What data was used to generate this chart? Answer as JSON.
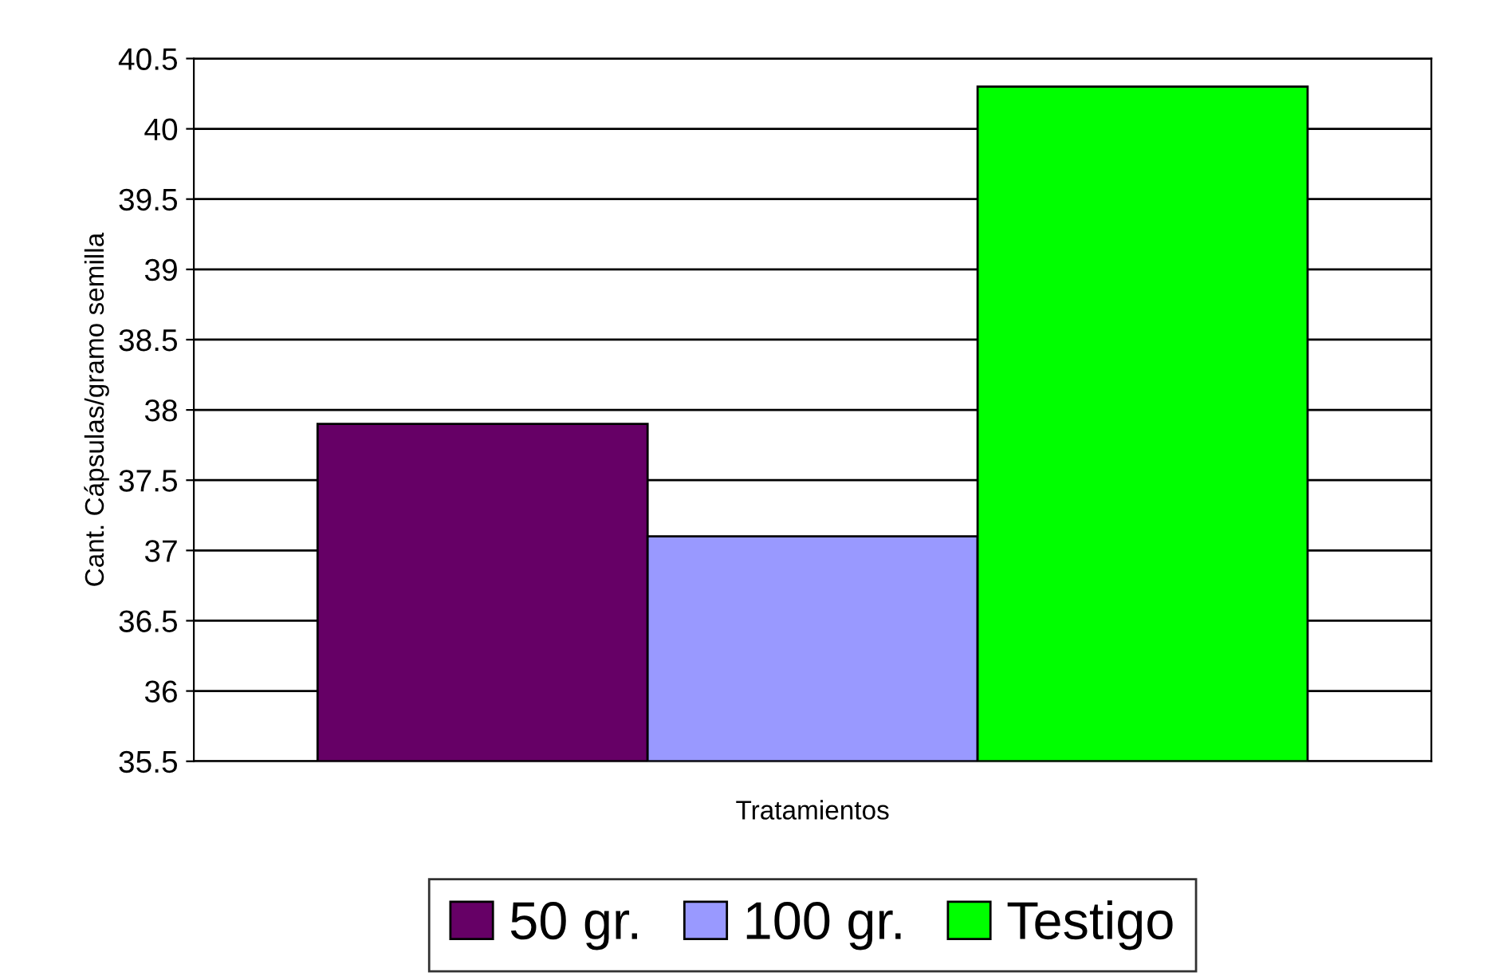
{
  "chart_data": {
    "type": "bar",
    "xlabel": "Tratamientos",
    "ylabel": "Cant. Cápsulas/gramo semilla",
    "categories": [
      null
    ],
    "series": [
      {
        "name": "50 gr.",
        "color": "#660066",
        "values": [
          37.9
        ]
      },
      {
        "name": "100 gr.",
        "color": "#9999ff",
        "values": [
          37.1
        ]
      },
      {
        "name": "Testigo",
        "color": "#00ff00",
        "values": [
          40.3
        ]
      }
    ],
    "ylim": [
      35.5,
      40.5
    ],
    "yticks": [
      35.5,
      36,
      36.5,
      37,
      37.5,
      38,
      38.5,
      39,
      39.5,
      40,
      40.5
    ],
    "grid": "y",
    "legend": "bottom"
  }
}
